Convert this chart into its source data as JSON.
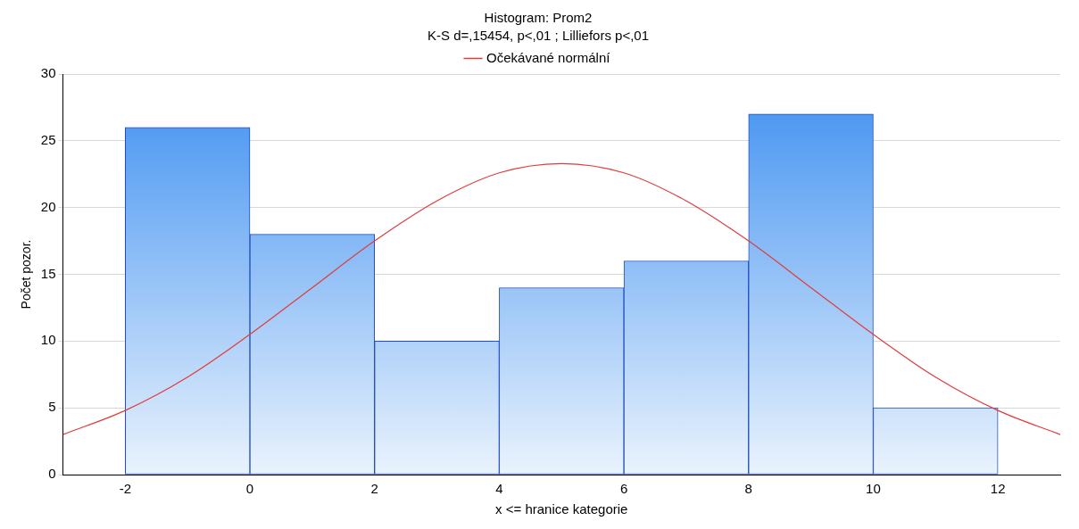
{
  "chart_data": {
    "type": "histogram",
    "title": "Histogram: Prom2",
    "subtitle": "K-S d=,15454, p<,01 ; Lilliefors p<,01",
    "xlabel": "x <= hranice kategorie",
    "ylabel": "Počet pozor.",
    "bins": [
      -2,
      0,
      2,
      4,
      6,
      8,
      10,
      12
    ],
    "values": [
      26,
      18,
      10,
      14,
      16,
      27,
      5
    ],
    "color": "#3d8ff0",
    "series": [
      {
        "name": "Očekávané normální",
        "type": "line",
        "color": "#e03c3c",
        "x": [
          -3,
          -2,
          -1,
          0,
          1,
          2,
          3,
          4,
          5,
          6,
          7,
          8,
          9,
          10,
          11,
          12,
          13
        ],
        "values": [
          3.0,
          4.8,
          7.3,
          10.5,
          14.0,
          17.5,
          20.5,
          22.6,
          23.3,
          22.6,
          20.5,
          17.5,
          14.0,
          10.5,
          7.3,
          4.8,
          3.0
        ]
      }
    ],
    "xlim": [
      -3,
      13
    ],
    "xticks": [
      -2,
      0,
      2,
      4,
      6,
      8,
      10,
      12
    ],
    "ylim": [
      0,
      30
    ],
    "yticks": [
      0,
      5,
      10,
      15,
      20,
      25,
      30
    ],
    "grid": "y",
    "legend": "top",
    "marker": "none"
  }
}
